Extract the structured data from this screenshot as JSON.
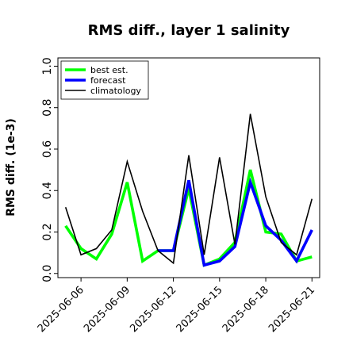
{
  "chart_data": {
    "type": "line",
    "title": "RMS diff., layer 1 salinity",
    "xlabel": "",
    "ylabel": "RMS diff. (1e-3)",
    "ylim": [
      -0.02,
      1.04
    ],
    "xlim": [
      -0.5,
      16.5
    ],
    "yticks": [
      0.0,
      0.2,
      0.4,
      0.6,
      0.8,
      1.0
    ],
    "ytick_labels": [
      "0.0",
      "0.2",
      "0.4",
      "0.6",
      "0.8",
      "1.0"
    ],
    "xticks": [
      1,
      4,
      7,
      10,
      13,
      16
    ],
    "xtick_labels": [
      "2025-06-06",
      "2025-06-09",
      "2025-06-12",
      "2025-06-15",
      "2025-06-18",
      "2025-06-21"
    ],
    "xtick_colors": [
      "#000000",
      "#000000",
      "#2e7d32",
      "#000000",
      "#000000",
      "#000000"
    ],
    "grid": false,
    "legend_position": "top-left",
    "series": [
      {
        "name": "best est.",
        "color": "#00ff00",
        "x": [
          0,
          1,
          2,
          3,
          4,
          5,
          6,
          7,
          8,
          9,
          10,
          11,
          12,
          13,
          14,
          15,
          16
        ],
        "values": [
          0.23,
          0.12,
          0.07,
          0.19,
          0.44,
          0.06,
          0.11,
          0.11,
          0.41,
          0.04,
          0.07,
          0.15,
          0.5,
          0.2,
          0.19,
          0.06,
          0.08
        ]
      },
      {
        "name": "forecast",
        "color": "#0000ff",
        "x": [
          6,
          7,
          8,
          9,
          10,
          11,
          12,
          13,
          14,
          15,
          16
        ],
        "values": [
          0.11,
          0.11,
          0.45,
          0.04,
          0.06,
          0.13,
          0.44,
          0.23,
          0.16,
          0.06,
          0.21
        ]
      },
      {
        "name": "climatology",
        "color": "#000000",
        "x": [
          0,
          1,
          2,
          3,
          4,
          5,
          6,
          7,
          8,
          9,
          10,
          11,
          12,
          13,
          14,
          15,
          16
        ],
        "values": [
          0.32,
          0.09,
          0.12,
          0.21,
          0.54,
          0.3,
          0.11,
          0.05,
          0.57,
          0.09,
          0.56,
          0.14,
          0.77,
          0.37,
          0.15,
          0.09,
          0.36
        ]
      }
    ]
  }
}
